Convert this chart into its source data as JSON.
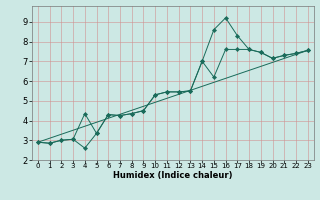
{
  "xlabel": "Humidex (Indice chaleur)",
  "ylabel": "",
  "xlim": [
    -0.5,
    23.5
  ],
  "ylim": [
    2.0,
    9.8
  ],
  "yticks": [
    2,
    3,
    4,
    5,
    6,
    7,
    8,
    9
  ],
  "xticks": [
    0,
    1,
    2,
    3,
    4,
    5,
    6,
    7,
    8,
    9,
    10,
    11,
    12,
    13,
    14,
    15,
    16,
    17,
    18,
    19,
    20,
    21,
    22,
    23
  ],
  "bg_color": "#cce8e4",
  "grid_color": "#d09090",
  "line_color": "#1a6b5a",
  "line1_x": [
    0,
    1,
    2,
    3,
    4,
    5,
    6,
    7,
    8,
    9,
    10,
    11,
    12,
    13,
    14,
    15,
    16,
    17,
    18,
    19,
    20,
    21,
    22,
    23
  ],
  "line1_y": [
    2.9,
    2.85,
    3.0,
    3.05,
    2.6,
    3.35,
    4.3,
    4.25,
    4.35,
    4.5,
    5.3,
    5.45,
    5.45,
    5.5,
    7.0,
    8.6,
    9.2,
    8.3,
    7.6,
    7.45,
    7.15,
    7.3,
    7.4,
    7.55
  ],
  "line2_x": [
    0,
    1,
    2,
    3,
    4,
    5,
    6,
    7,
    8,
    9,
    10,
    11,
    12,
    13,
    14,
    15,
    16,
    17,
    18,
    19,
    20,
    21,
    22,
    23
  ],
  "line2_y": [
    2.9,
    2.85,
    3.0,
    3.05,
    4.35,
    3.35,
    4.3,
    4.25,
    4.35,
    4.5,
    5.3,
    5.45,
    5.45,
    5.5,
    7.0,
    6.2,
    7.6,
    7.6,
    7.6,
    7.45,
    7.15,
    7.3,
    7.4,
    7.55
  ],
  "line3_x": [
    0,
    23
  ],
  "line3_y": [
    2.9,
    7.55
  ]
}
